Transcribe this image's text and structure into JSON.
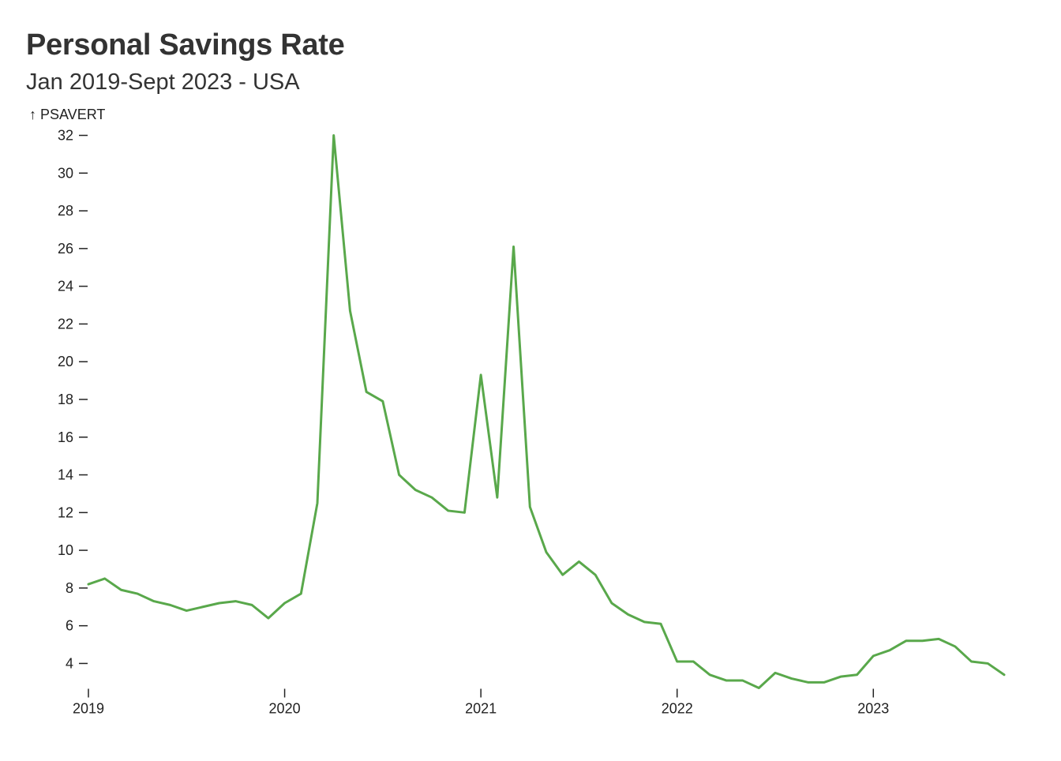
{
  "header": {
    "title": "Personal Savings Rate",
    "subtitle": "Jan 2019-Sept 2023 - USA"
  },
  "chart_data": {
    "type": "line",
    "ylabel": "↑ PSAVERT",
    "xlabel": "",
    "x_ticks": [
      {
        "label": "2019",
        "date": "2019-01"
      },
      {
        "label": "2020",
        "date": "2020-01"
      },
      {
        "label": "2021",
        "date": "2021-01"
      },
      {
        "label": "2022",
        "date": "2022-01"
      },
      {
        "label": "2023",
        "date": "2023-01"
      }
    ],
    "y_ticks": [
      4,
      6,
      8,
      10,
      12,
      14,
      16,
      18,
      20,
      22,
      24,
      26,
      28,
      30,
      32
    ],
    "xlim": [
      "2019-01",
      "2023-09"
    ],
    "ylim": [
      2.7,
      32
    ],
    "grid": false,
    "line_color": "#59a84b",
    "series": [
      {
        "x": [
          "2019-01",
          "2019-02",
          "2019-03",
          "2019-04",
          "2019-05",
          "2019-06",
          "2019-07",
          "2019-08",
          "2019-09",
          "2019-10",
          "2019-11",
          "2019-12",
          "2020-01",
          "2020-02",
          "2020-03",
          "2020-04",
          "2020-05",
          "2020-06",
          "2020-07",
          "2020-08",
          "2020-09",
          "2020-10",
          "2020-11",
          "2020-12",
          "2021-01",
          "2021-02",
          "2021-03",
          "2021-04",
          "2021-05",
          "2021-06",
          "2021-07",
          "2021-08",
          "2021-09",
          "2021-10",
          "2021-11",
          "2021-12",
          "2022-01",
          "2022-02",
          "2022-03",
          "2022-04",
          "2022-05",
          "2022-06",
          "2022-07",
          "2022-08",
          "2022-09",
          "2022-10",
          "2022-11",
          "2022-12",
          "2023-01",
          "2023-02",
          "2023-03",
          "2023-04",
          "2023-05",
          "2023-06",
          "2023-07",
          "2023-08",
          "2023-09"
        ],
        "values": [
          8.2,
          8.5,
          7.9,
          7.7,
          7.3,
          7.1,
          6.8,
          7.0,
          7.2,
          7.3,
          7.1,
          6.4,
          7.2,
          7.7,
          12.5,
          32.0,
          22.7,
          18.4,
          17.9,
          14.0,
          13.2,
          12.8,
          12.1,
          12.0,
          19.3,
          12.8,
          26.1,
          12.3,
          9.9,
          8.7,
          9.4,
          8.7,
          7.2,
          6.6,
          6.2,
          6.1,
          4.1,
          4.1,
          3.4,
          3.1,
          3.1,
          2.7,
          3.5,
          3.2,
          3.0,
          3.0,
          3.3,
          3.4,
          4.4,
          4.7,
          5.2,
          5.2,
          5.3,
          4.9,
          4.1,
          4.0,
          3.4
        ]
      }
    ]
  }
}
